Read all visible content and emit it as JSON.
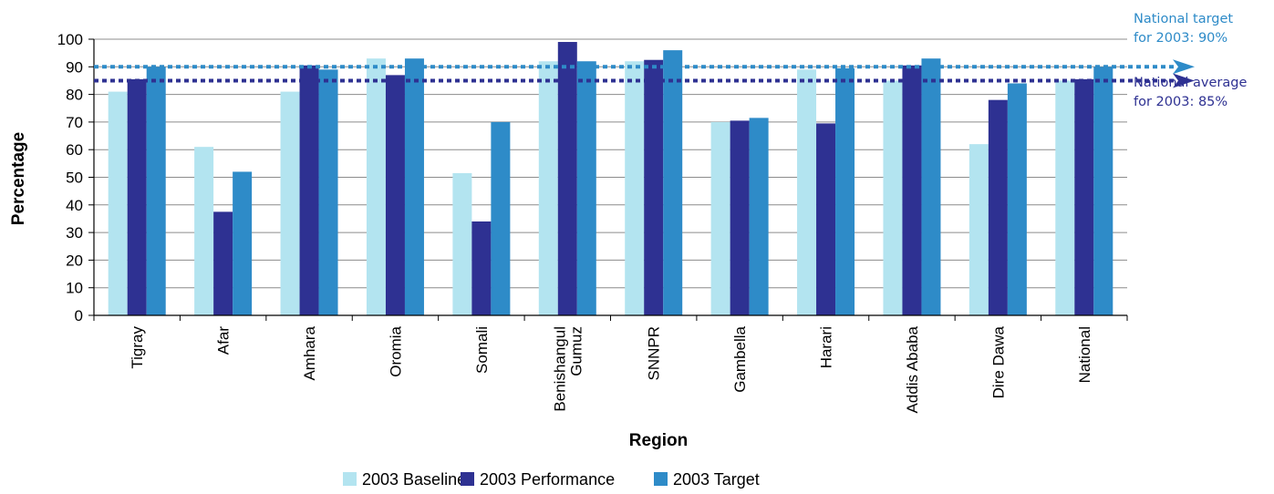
{
  "chart_data": {
    "type": "bar",
    "xlabel": "Region",
    "ylabel": "Percentage",
    "ylim": [
      0,
      100
    ],
    "ytick_step": 10,
    "grid": true,
    "legend_position": "bottom",
    "categories": [
      [
        "Tigray"
      ],
      [
        "Afar"
      ],
      [
        "Amhara"
      ],
      [
        "Oromia"
      ],
      [
        "Somali"
      ],
      [
        "Benishangul",
        "Gumuz"
      ],
      [
        "SNNPR"
      ],
      [
        "Gambella"
      ],
      [
        "Harari"
      ],
      [
        "Addis Ababa"
      ],
      [
        "Dire Dawa"
      ],
      [
        "National"
      ]
    ],
    "series": [
      {
        "name": "2003 Baseline",
        "color": "#b3e4f0",
        "values": [
          81,
          61,
          81,
          93,
          51.5,
          92,
          92,
          70,
          89,
          85,
          62,
          85
        ]
      },
      {
        "name": "2003 Performance",
        "color": "#2e3192",
        "values": [
          85.5,
          37.5,
          90.5,
          87,
          34,
          99,
          92.5,
          70.5,
          69.5,
          90.5,
          78,
          85.5
        ]
      },
      {
        "name": "2003 Target",
        "color": "#2e8bc8",
        "values": [
          90,
          52,
          89,
          93,
          70,
          92,
          96,
          71.5,
          89.5,
          93,
          84,
          90
        ]
      }
    ],
    "reference_lines": [
      {
        "value": 90,
        "color": "#2e8bc8",
        "label": [
          "National target",
          "for 2003: 90%"
        ]
      },
      {
        "value": 85,
        "color": "#2e3192",
        "label": [
          "National average",
          "for 2003: 85%"
        ]
      }
    ]
  }
}
